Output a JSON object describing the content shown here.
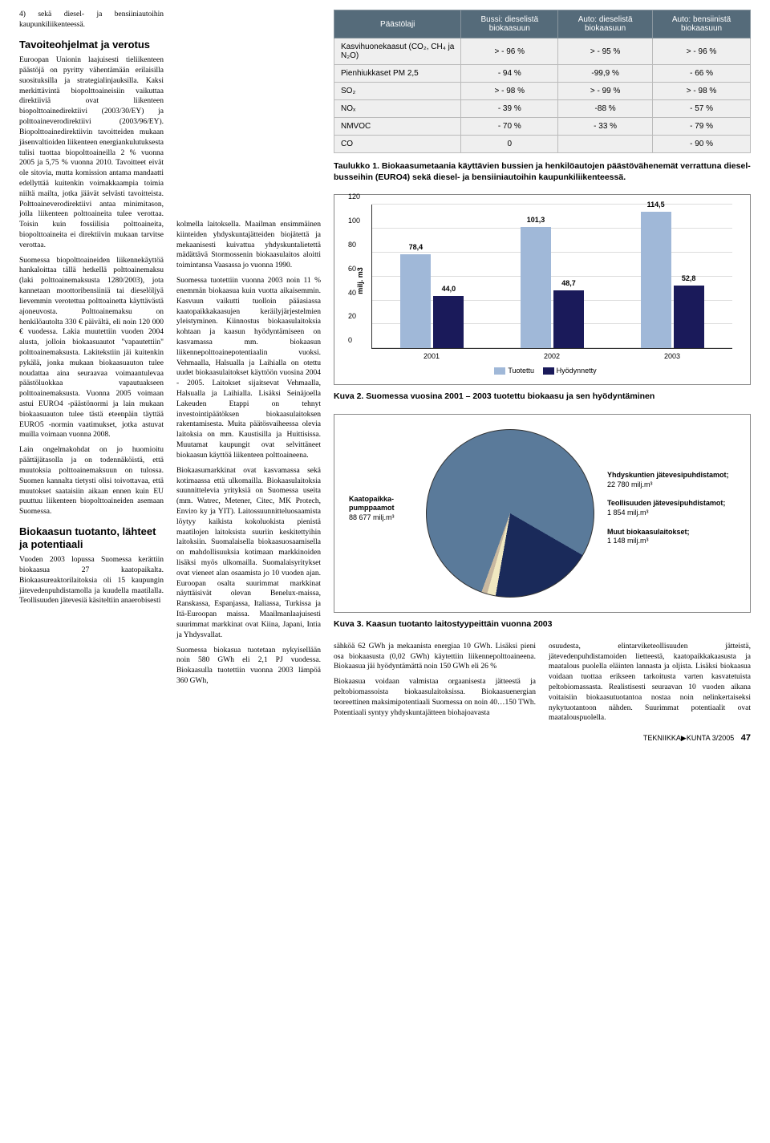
{
  "leftCol": {
    "intro": "4) sekä diesel- ja bensiiniautoihin kaupunkiliikenteessä.",
    "h1": "Tavoiteohjelmat ja verotus",
    "p1": "Euroopan Unionin laajuisesti tieliikenteen päästöjä on pyritty vähentämään erilaisilla suosituksilla ja strategialinjauksilla. Kaksi merkittävintä biopolttoaineisiin vaikuttaa direktiiviä ovat liikenteen biopolttoainedirektiivi (2003/30/EY) ja polttoaineverodirektiivi (2003/96/EY). Biopolttoainedirektiivin tavoitteiden mukaan jäsenvaltioiden liikenteen energiankulutuksesta tulisi tuottaa biopolttoaineilla 2 % vuonna 2005 ja 5,75 % vuonna 2010. Tavoitteet eivät ole sitovia, mutta komission antama mandaatti edellyttää kuitenkin voimakkaampia toimia niiltä mailta, jotka jäävät selvästi tavoitteista. Polttoaineverodirektiivi antaa minimitason, jolla liikenteen polttoaineita tulee verottaa. Toisin kuin fossiilisia polttoaineita, biopolttoaineita ei direktiivin mukaan tarvitse verottaa.",
    "p2": "Suomessa biopolttoaineiden liikennekäyttöä hankaloittaa tällä hetkellä polttoainemaksu (laki polttoainemaksusta 1280/2003), jota kannetaan moottoribensiiniä tai dieselöljyä lievemmin verotettua polttoainetta käyttävästä ajoneuvosta. Polttoainemaksu on henkilöautolta 330 € päivältä, eli noin 120 000 € vuodessa. Lakia muutettiin vuoden 2004 alusta, jolloin biokaasuautot \"vapautettiin\" polttoainemaksusta. Lakitekstiin jäi kuitenkin pykälä, jonka mukaan biokaasuauton tulee noudattaa aina seuraavaa voimaantulevaa päästöluokkaa vapautuakseen polttoainemaksusta. Vuonna 2005 voimaan astui EURO4 -päästönormi ja lain mukaan biokaasuauton tulee tästä eteenpäin täyttää EURO5 -normin vaatimukset, jotka astuvat muilla voimaan vuonna 2008.",
    "p3": "Lain ongelmakohdat on jo huomioitu päättäjätasolla ja on todennäköistä, että muutoksia polttoainemaksuun on tulossa. Suomen kannalta tietysti olisi toivottavaa, että muutokset saataisiin aikaan ennen kuin EU puuttuu liikenteen biopolttoaineiden asemaan Suomessa.",
    "h2": "Biokaasun tuotanto, lähteet ja potentiaali",
    "p4": "Vuoden 2003 lopussa Suomessa kerättiin biokaasua 27 kaatopaikalta. Biokaasureaktorilaitoksia oli 15 kaupungin jätevedenpuhdistamolla ja kuudella maatilalla. Teollisuuden jätevesiä käsiteltiin anaerobisesti"
  },
  "midCol": {
    "p1": "kolmella laitoksella. Maailman ensimmäinen kiinteiden yhdyskuntajätteiden biojätettä ja mekaanisesti kuivattua yhdyskuntalietettä mädättävä Stormossenin biokaasulaitos aloitti toimintansa Vaasassa jo vuonna 1990.",
    "p2": "Suomessa tuotettiin vuonna 2003 noin 11 % enemmän biokaasua kuin vuotta aikaisemmin. Kasvuun vaikutti tuolloin pääasiassa kaatopaikkakaasujen keräilyjärjestelmien yleistyminen. Kiinnostus biokaasulaitoksia kohtaan ja kaasun hyödyntämiseen on kasvamassa mm. biokaasun liikennepolttoainepotentiaalin vuoksi. Vehmaalla, Halsualla ja Laihialla on otettu uudet biokaasulaitokset käyttöön vuosina 2004 - 2005. Laitokset sijaitsevat Vehmaalla, Halsualla ja Laihialla. Lisäksi Seinäjoella Lakeuden Etappi on tehnyt investointipäätöksen biokaasulaitoksen rakentamisesta. Muita päätösvaiheessa olevia laitoksia on mm. Kaustisilla ja Huittisissa. Muutamat kaupungit ovat selvittäneet biokaasun käyttöä liikenteen polttoaineena.",
    "p3": "Biokaasumarkkinat ovat kasvamassa sekä kotimaassa että ulkomailla. Biokaasulaitoksia suunnittelevia yrityksiä on Suomessa useita (mm. Watrec, Metener, Citec, MK Protech, Enviro ky ja YIT). Laitossuunnitteluosaamista löytyy kaikista kokoluokista pienistä maatilojen laitoksista suuriin keskitettyihin laitoksiin. Suomalaisella biokaasuosaamisella on mahdollisuuksia kotimaan markkinoiden lisäksi myös ulkomailla. Suomalaisyritykset ovat vieneet alan osaamista jo 10 vuoden ajan. Euroopan osalta suurimmat markkinat näyttäisivät olevan Benelux-maissa, Ranskassa, Espanjassa, Italiassa, Turkissa ja Itä-Euroopan maissa. Maailmanlaajuisesti suurimmat markkinat ovat Kiina, Japani, Intia ja Yhdysvallat.",
    "p4": "Suomessa biokasua tuotetaan nykyisellään noin 580 GWh eli 2,1 PJ vuodessa. Biokaasulla tuotettiin vuonna 2003 lämpöä 360 GWh,"
  },
  "table": {
    "headers": [
      "Päästölaji",
      "Bussi: dieselistä biokaasuun",
      "Auto: dieselistä biokaasuun",
      "Auto: bensiinistä biokaasuun"
    ],
    "rows": [
      [
        "Kasvihuonekaasut (CO₂, CH₄ ja N₂O)",
        "> - 96 %",
        "> - 95 %",
        "> - 96 %"
      ],
      [
        "Pienhiukkaset PM 2,5",
        "- 94 %",
        "-99,9 %",
        "- 66 %"
      ],
      [
        "SO₂",
        "> - 98 %",
        "> - 99 %",
        "> - 98 %"
      ],
      [
        "NOₓ",
        "- 39 %",
        "-88 %",
        "- 57 %"
      ],
      [
        "NMVOC",
        "- 70 %",
        "- 33 %",
        "- 79 %"
      ],
      [
        "CO",
        "0",
        "",
        "- 90 %"
      ]
    ],
    "caption": "Taulukko 1. Biokaasumetaania käyttävien bussien ja henkilöautojen päästövähenemät verrattuna diesel-busseihin (EURO4) sekä diesel- ja bensiiniautoihin kaupunkiliikenteessä."
  },
  "barChart": {
    "ylabel": "milj. m3",
    "ymax": 120,
    "yticks": [
      0,
      20,
      40,
      60,
      80,
      100,
      120
    ],
    "categories": [
      "2001",
      "2002",
      "2003"
    ],
    "series": [
      {
        "name": "Tuotettu",
        "color": "#a0b8d8",
        "values": [
          78.4,
          101.3,
          114.5
        ]
      },
      {
        "name": "Hyödynnetty",
        "color": "#1a1a5a",
        "values": [
          44.0,
          48.7,
          52.8
        ]
      }
    ],
    "legend": [
      "Tuotettu",
      "Hyödynnetty"
    ],
    "caption": "Kuva 2. Suomessa vuosina 2001 – 2003 tuotettu biokaasu ja sen hyödyntäminen"
  },
  "pieChart": {
    "slices": [
      {
        "label": "Kaatopaikka-pumppaamot",
        "value": "88 677 milj.m³",
        "color": "#5a7a9a",
        "deg": 280
      },
      {
        "label": "Yhdyskuntien jätevesipuhdistamot;",
        "value": "22 780 milj.m³",
        "color": "#1a2a5a",
        "deg": 70
      },
      {
        "label": "Teollisuuden jätevesipuhdistamot;",
        "value": "1 854 milj.m³",
        "color": "#f0e8c0",
        "deg": 6
      },
      {
        "label": "Muut biokaasulaitokset;",
        "value": "1 148 milj.m³",
        "color": "#c8b8a0",
        "deg": 4
      }
    ],
    "caption": "Kuva 3. Kaasun tuotanto laitostyypeittäin vuonna 2003"
  },
  "bottom": {
    "c1": "sähköä 62 GWh ja mekaanista energiaa 10 GWh. Lisäksi pieni osa biokaasusta (0,02 GWh) käytettiin liikennepolttoaineena. Biokaasua jäi hyödyntämättä noin 150 GWh eli 26 %",
    "c1b": "Biokaasua voidaan valmistaa orgaanisesta jätteestä ja peltobiomassoista biokaasulaitoksissa. Biokaasuenergian teoreettinen maksimipotentiaali Suomessa on noin 40…150 TWh. Potentiaali syntyy yhdyskuntajätteen biohajoavasta",
    "c2": "osuudesta, elintarviketeollisuuden jätteistä, jätevedenpuhdistamoiden lietteestä, kaatopaikkakaasusta ja maatalous puolella eläinten lannasta ja oljista. Lisäksi biokaasua voidaan tuottaa erikseen tarkoitusta varten kasvatetuista peltobiomassasta. Realistisesti seuraavan 10 vuoden aikana voitaisiin biokaasutuotantoa nostaa noin nelinkertaiseksi nykytuotantoon nähden. Suurimmat potentiaalit ovat maatalouspuolella."
  },
  "footer": {
    "mag": "TEKNIIKKA▶KUNTA",
    "issue": "3/2005",
    "page": "47"
  }
}
